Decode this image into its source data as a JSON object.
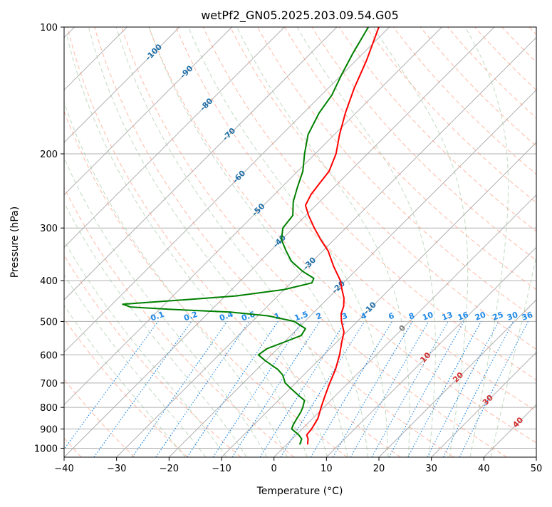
{
  "chart_data": {
    "type": "skew-t",
    "title": "wetPf2_GN05.2025.203.09.54.G05",
    "xlabel": "Temperature (°C)",
    "ylabel": "Pressure (hPa)",
    "xlim": [
      -40,
      50
    ],
    "ylim": [
      1050,
      100
    ],
    "y_scale": "log",
    "grid": true,
    "x_ticks": [
      -40,
      -30,
      -20,
      -10,
      0,
      10,
      20,
      30,
      40,
      50
    ],
    "x_tick_labels": [
      "−40",
      "−30",
      "−20",
      "−10",
      "0",
      "10",
      "20",
      "30",
      "40",
      "50"
    ],
    "y_ticks": [
      1000,
      900,
      800,
      700,
      600,
      500,
      400,
      300,
      200,
      100
    ],
    "y_tick_labels": [
      "1000",
      "900",
      "800",
      "700",
      "600",
      "500",
      "400",
      "300",
      "200",
      "100"
    ],
    "isotherm_labels": [
      {
        "label": "-100",
        "p": 115
      },
      {
        "label": "-90",
        "p": 128
      },
      {
        "label": "-80",
        "p": 153
      },
      {
        "label": "-70",
        "p": 180
      },
      {
        "label": "-60",
        "p": 227
      },
      {
        "label": "-50",
        "p": 272
      },
      {
        "label": "-40",
        "p": 323
      },
      {
        "label": "-30",
        "p": 365
      },
      {
        "label": "-20",
        "p": 415
      },
      {
        "label": "-10",
        "p": 466
      }
    ],
    "isotherm_label_color": "#1f6fa8",
    "mixing_ratio_labels": [
      "0.1",
      "0.2",
      "0.4",
      "0.6",
      "1",
      "1.5",
      "2",
      "3",
      "4",
      "6",
      "8",
      "10",
      "13",
      "16",
      "20",
      "25",
      "30",
      "36"
    ],
    "mixing_ratio_label_color": "#1e88e5",
    "moist_adiabat_labels": [
      "0",
      "10",
      "20",
      "30",
      "40"
    ],
    "moist_adiabat_label_color": "#d32f2f",
    "series": [
      {
        "role": "temperature",
        "color": "#ff0000",
        "points": [
          {
            "p": 980,
            "t": 4.0
          },
          {
            "p": 950,
            "t": 3.0
          },
          {
            "p": 930,
            "t": 2.0
          },
          {
            "p": 900,
            "t": 1.8
          },
          {
            "p": 850,
            "t": 1.0
          },
          {
            "p": 800,
            "t": -0.5
          },
          {
            "p": 750,
            "t": -2.0
          },
          {
            "p": 700,
            "t": -3.5
          },
          {
            "p": 650,
            "t": -5.0
          },
          {
            "p": 600,
            "t": -7.0
          },
          {
            "p": 560,
            "t": -9.0
          },
          {
            "p": 530,
            "t": -10.5
          },
          {
            "p": 500,
            "t": -13.0
          },
          {
            "p": 480,
            "t": -14.5
          },
          {
            "p": 460,
            "t": -15.5
          },
          {
            "p": 440,
            "t": -17.0
          },
          {
            "p": 420,
            "t": -19.0
          },
          {
            "p": 400,
            "t": -21.0
          },
          {
            "p": 370,
            "t": -25.0
          },
          {
            "p": 340,
            "t": -29.0
          },
          {
            "p": 320,
            "t": -32.5
          },
          {
            "p": 300,
            "t": -36.0
          },
          {
            "p": 280,
            "t": -39.5
          },
          {
            "p": 265,
            "t": -42.0
          },
          {
            "p": 250,
            "t": -43.0
          },
          {
            "p": 235,
            "t": -43.5
          },
          {
            "p": 220,
            "t": -44.0
          },
          {
            "p": 200,
            "t": -46.0
          },
          {
            "p": 180,
            "t": -49.0
          },
          {
            "p": 160,
            "t": -52.0
          },
          {
            "p": 140,
            "t": -55.0
          },
          {
            "p": 120,
            "t": -58.0
          },
          {
            "p": 100,
            "t": -62.0
          }
        ]
      },
      {
        "role": "dewpoint",
        "color": "#008000",
        "points": [
          {
            "p": 980,
            "t": 2.5
          },
          {
            "p": 950,
            "t": 1.8
          },
          {
            "p": 930,
            "t": 0.5
          },
          {
            "p": 900,
            "t": -2.0
          },
          {
            "p": 880,
            "t": -2.5
          },
          {
            "p": 850,
            "t": -3.0
          },
          {
            "p": 820,
            "t": -3.5
          },
          {
            "p": 800,
            "t": -4.0
          },
          {
            "p": 770,
            "t": -5.0
          },
          {
            "p": 750,
            "t": -7.0
          },
          {
            "p": 720,
            "t": -10.0
          },
          {
            "p": 700,
            "t": -12.0
          },
          {
            "p": 670,
            "t": -14.0
          },
          {
            "p": 650,
            "t": -16.0
          },
          {
            "p": 620,
            "t": -20.0
          },
          {
            "p": 600,
            "t": -22.5
          },
          {
            "p": 580,
            "t": -22.0
          },
          {
            "p": 560,
            "t": -20.0
          },
          {
            "p": 540,
            "t": -18.0
          },
          {
            "p": 520,
            "t": -18.5
          },
          {
            "p": 500,
            "t": -22.0
          },
          {
            "p": 485,
            "t": -28.0
          },
          {
            "p": 475,
            "t": -36.0
          },
          {
            "p": 468,
            "t": -48.0
          },
          {
            "p": 462,
            "t": -56.0
          },
          {
            "p": 455,
            "t": -58.0
          },
          {
            "p": 445,
            "t": -48.0
          },
          {
            "p": 435,
            "t": -38.0
          },
          {
            "p": 420,
            "t": -30.0
          },
          {
            "p": 405,
            "t": -26.0
          },
          {
            "p": 395,
            "t": -26.5
          },
          {
            "p": 380,
            "t": -30.0
          },
          {
            "p": 360,
            "t": -34.0
          },
          {
            "p": 340,
            "t": -37.0
          },
          {
            "p": 320,
            "t": -40.0
          },
          {
            "p": 300,
            "t": -42.0
          },
          {
            "p": 280,
            "t": -42.5
          },
          {
            "p": 260,
            "t": -45.0
          },
          {
            "p": 240,
            "t": -47.0
          },
          {
            "p": 220,
            "t": -49.0
          },
          {
            "p": 200,
            "t": -52.0
          },
          {
            "p": 180,
            "t": -55.0
          },
          {
            "p": 160,
            "t": -57.0
          },
          {
            "p": 145,
            "t": -58.0
          },
          {
            "p": 130,
            "t": -60.0
          },
          {
            "p": 115,
            "t": -62.0
          },
          {
            "p": 100,
            "t": -64.0
          }
        ]
      }
    ]
  },
  "colors": {
    "grid": "#b0b0b0",
    "dry_adiabat": "#ff8c69",
    "moist_adiabat": "#8fbc8f",
    "mixing_ratio": "#1e88e5",
    "left_adiabat": "#e0c9a6"
  }
}
